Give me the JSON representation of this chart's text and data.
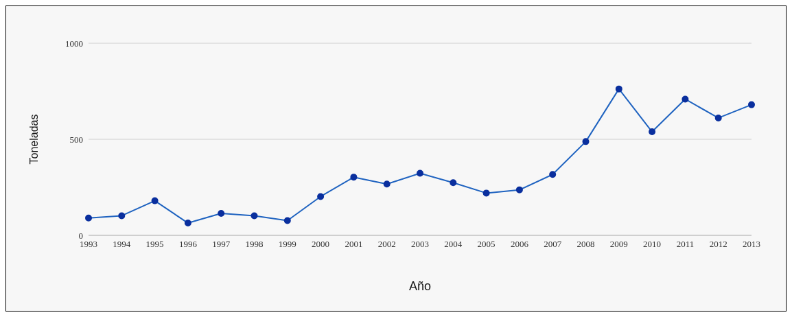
{
  "chart_data": {
    "type": "line",
    "xlabel": "Año",
    "ylabel": "Toneladas",
    "categories": [
      "1993",
      "1994",
      "1995",
      "1996",
      "1997",
      "1998",
      "1999",
      "2000",
      "2001",
      "2002",
      "2003",
      "2004",
      "2005",
      "2006",
      "2007",
      "2008",
      "2009",
      "2010",
      "2011",
      "2012",
      "2013"
    ],
    "series": [
      {
        "color": "#1f63c0",
        "values": [
          90,
          102,
          180,
          64,
          114,
          102,
          77,
          202,
          303,
          267,
          323,
          274,
          220,
          237,
          317,
          488,
          762,
          539,
          709,
          611,
          680
        ]
      }
    ],
    "ylim": [
      0,
      1000
    ],
    "yticks": [
      0,
      500,
      1000
    ],
    "grid": "y",
    "marker": "circle",
    "line_style": "solid"
  }
}
